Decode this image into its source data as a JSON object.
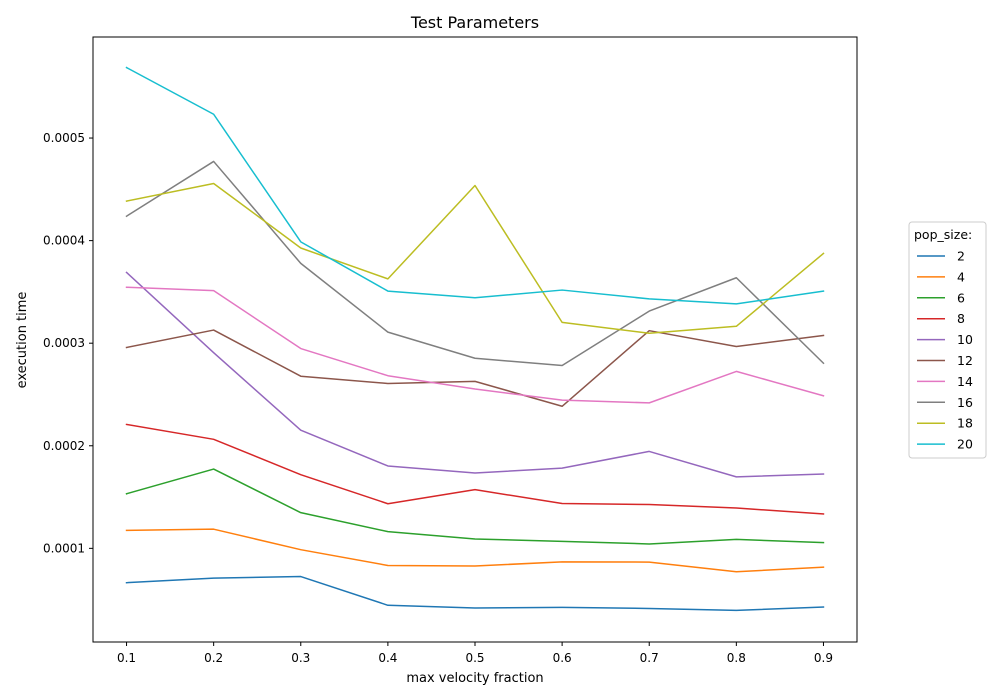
{
  "chart_data": {
    "type": "line",
    "title": "Test Parameters",
    "xlabel": "max velocity fraction",
    "ylabel": "execution time",
    "x": [
      0.1,
      0.2,
      0.3,
      0.4,
      0.5,
      0.6,
      0.7,
      0.8,
      0.9
    ],
    "xlim": [
      0.0615,
      0.9385
    ],
    "ylim": [
      8.7e-06,
      0.0005985
    ],
    "xticks": [
      "0.1",
      "0.2",
      "0.3",
      "0.4",
      "0.5",
      "0.6",
      "0.7",
      "0.8",
      "0.9"
    ],
    "yticks": [
      {
        "value": 0.0001,
        "label": "0.0001"
      },
      {
        "value": 0.0002,
        "label": "0.0002"
      },
      {
        "value": 0.0003,
        "label": "0.0003"
      },
      {
        "value": 0.0004,
        "label": "0.0004"
      },
      {
        "value": 0.0005,
        "label": "0.0005"
      }
    ],
    "grid": false,
    "legend": {
      "title": "pop_size:",
      "placement": "right"
    },
    "series": [
      {
        "name": "2",
        "color": "#1f77b4",
        "values": [
          6.65e-05,
          7.1e-05,
          7.25e-05,
          4.45e-05,
          4.18e-05,
          4.25e-05,
          4.14e-05,
          3.95e-05,
          4.28e-05
        ]
      },
      {
        "name": "4",
        "color": "#ff7f0e",
        "values": [
          0.0001175,
          0.0001187,
          9.87e-05,
          8.33e-05,
          8.28e-05,
          8.68e-05,
          8.66e-05,
          7.72e-05,
          8.17e-05
        ]
      },
      {
        "name": "6",
        "color": "#2ca02c",
        "values": [
          0.0001532,
          0.0001773,
          0.0001348,
          0.0001163,
          0.0001091,
          0.0001068,
          0.0001043,
          0.0001087,
          0.0001056
        ]
      },
      {
        "name": "8",
        "color": "#d62728",
        "values": [
          0.0002208,
          0.0002063,
          0.0001718,
          0.0001435,
          0.0001572,
          0.0001437,
          0.0001427,
          0.0001393,
          0.0001335
        ]
      },
      {
        "name": "10",
        "color": "#9467bd",
        "values": [
          0.000369,
          0.0002907,
          0.0002152,
          0.0001803,
          0.0001735,
          0.0001782,
          0.0001945,
          0.0001697,
          0.0001725
        ]
      },
      {
        "name": "12",
        "color": "#8c564b",
        "values": [
          0.0002958,
          0.0003128,
          0.0002678,
          0.0002607,
          0.0002628,
          0.0002385,
          0.0003122,
          0.0002968,
          0.0003075
        ]
      },
      {
        "name": "14",
        "color": "#e377c2",
        "values": [
          0.0003545,
          0.0003512,
          0.0002948,
          0.0002683,
          0.0002553,
          0.0002445,
          0.0002418,
          0.0002725,
          0.0002487
        ]
      },
      {
        "name": "16",
        "color": "#7f7f7f",
        "values": [
          0.0004238,
          0.0004772,
          0.0003778,
          0.0003108,
          0.0002853,
          0.0002782,
          0.0003313,
          0.0003638,
          0.0002805
        ]
      },
      {
        "name": "18",
        "color": "#bcbd22",
        "values": [
          0.0004385,
          0.0004557,
          0.0003928,
          0.0003627,
          0.0004537,
          0.0003203,
          0.0003097,
          0.0003165,
          0.0003875
        ]
      },
      {
        "name": "20",
        "color": "#17becf",
        "values": [
          0.0005687,
          0.0005232,
          0.0003988,
          0.0003508,
          0.0003443,
          0.0003518,
          0.0003432,
          0.0003383,
          0.0003508
        ]
      }
    ]
  }
}
